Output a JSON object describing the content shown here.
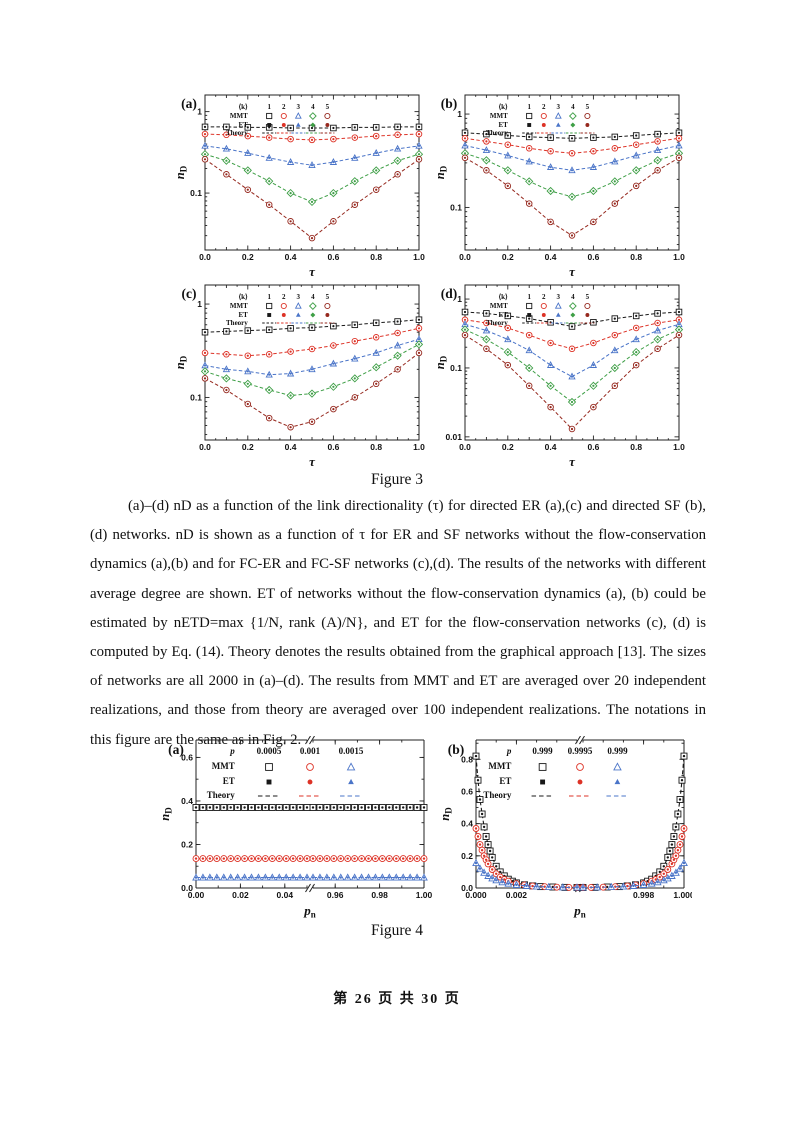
{
  "document": {
    "figure3_caption": "Figure 3",
    "figure4_caption": "Figure 4",
    "body_text": "(a)–(d) nD as a function of the link directionality (τ) for directed ER (a),(c) and directed SF (b),(d) networks. nD is shown as a function of τ for ER and SF networks without the flow-conservation dynamics (a),(b) and for FC-ER and FC-SF networks (c),(d). The results of the networks with different average degree are shown. ET of networks without the flow-conservation dynamics (a), (b) could be estimated by nETD=max {1/N, rank (A)/N}, and ET for the flow-conservation networks (c), (d) is computed by Eq. (14). Theory denotes the results obtained from the graphical approach [13]. The sizes of networks are all 2000 in (a)–(d). The results from MMT and ET are averaged over 20 independent realizations, and those from theory are averaged over 100 independent realizations. The notations in this figure are the same as in Fig. 2.",
    "footer": "第 26 页  共 30 页"
  },
  "colors": {
    "k1": "#181818",
    "k2": "#dd3327",
    "k3": "#4a74c8",
    "k4": "#3f9f47",
    "k5": "#96291f"
  },
  "chart_data": [
    {
      "id": "3a",
      "type": "line",
      "panel_label": "(a)",
      "xlabel": "τ",
      "ylabel": "nD",
      "yscale": "log",
      "x": [
        0,
        0.1,
        0.2,
        0.3,
        0.4,
        0.5,
        0.6,
        0.7,
        0.8,
        0.9,
        1.0
      ],
      "xticks": [
        0,
        0.2,
        0.4,
        0.6,
        0.8,
        1.0
      ],
      "ylim": [
        0.02,
        1.6
      ],
      "yticks": [
        1,
        0.1
      ],
      "legend": {
        "header": "⟨k⟩",
        "cols": [
          "1",
          "2",
          "3",
          "4",
          "5"
        ],
        "rows": [
          "MMT",
          "ET",
          "Theory"
        ]
      },
      "series": [
        {
          "name": "k=1",
          "color_key": "k1",
          "marker": "square",
          "values": [
            0.65,
            0.65,
            0.64,
            0.64,
            0.63,
            0.63,
            0.63,
            0.64,
            0.64,
            0.65,
            0.65
          ]
        },
        {
          "name": "k=2",
          "color_key": "k2",
          "marker": "circle",
          "values": [
            0.53,
            0.52,
            0.5,
            0.48,
            0.46,
            0.45,
            0.46,
            0.48,
            0.5,
            0.52,
            0.53
          ]
        },
        {
          "name": "k=3",
          "color_key": "k3",
          "marker": "triangle",
          "values": [
            0.38,
            0.35,
            0.31,
            0.27,
            0.24,
            0.22,
            0.24,
            0.27,
            0.31,
            0.35,
            0.38
          ]
        },
        {
          "name": "k=4",
          "color_key": "k4",
          "marker": "diamond",
          "values": [
            0.3,
            0.25,
            0.19,
            0.14,
            0.1,
            0.078,
            0.1,
            0.14,
            0.19,
            0.25,
            0.3
          ]
        },
        {
          "name": "k=5",
          "color_key": "k5",
          "marker": "circle",
          "values": [
            0.26,
            0.17,
            0.11,
            0.072,
            0.045,
            0.028,
            0.045,
            0.072,
            0.11,
            0.17,
            0.26
          ]
        }
      ]
    },
    {
      "id": "3b",
      "type": "line",
      "panel_label": "(b)",
      "xlabel": "τ",
      "ylabel": "nD",
      "yscale": "log",
      "x": [
        0,
        0.1,
        0.2,
        0.3,
        0.4,
        0.5,
        0.6,
        0.7,
        0.8,
        0.9,
        1.0
      ],
      "xticks": [
        0,
        0.2,
        0.4,
        0.6,
        0.8,
        1.0
      ],
      "ylim": [
        0.035,
        1.6
      ],
      "yticks": [
        1,
        0.1
      ],
      "legend": {
        "header": "⟨k⟩",
        "cols": [
          "1",
          "2",
          "3",
          "4",
          "5"
        ],
        "rows": [
          "MMT",
          "ET",
          "Theory"
        ]
      },
      "series": [
        {
          "name": "k=1",
          "color_key": "k1",
          "marker": "square",
          "values": [
            0.63,
            0.61,
            0.59,
            0.57,
            0.56,
            0.55,
            0.56,
            0.57,
            0.59,
            0.61,
            0.63
          ]
        },
        {
          "name": "k=2",
          "color_key": "k2",
          "marker": "circle",
          "values": [
            0.55,
            0.51,
            0.47,
            0.43,
            0.4,
            0.38,
            0.4,
            0.43,
            0.47,
            0.51,
            0.55
          ]
        },
        {
          "name": "k=3",
          "color_key": "k3",
          "marker": "triangle",
          "values": [
            0.46,
            0.41,
            0.36,
            0.31,
            0.27,
            0.25,
            0.27,
            0.31,
            0.36,
            0.41,
            0.46
          ]
        },
        {
          "name": "k=4",
          "color_key": "k4",
          "marker": "diamond",
          "values": [
            0.38,
            0.32,
            0.25,
            0.19,
            0.15,
            0.13,
            0.15,
            0.19,
            0.25,
            0.32,
            0.38
          ]
        },
        {
          "name": "k=5",
          "color_key": "k5",
          "marker": "circle",
          "values": [
            0.34,
            0.25,
            0.17,
            0.11,
            0.07,
            0.05,
            0.07,
            0.11,
            0.17,
            0.25,
            0.34
          ]
        }
      ]
    },
    {
      "id": "3c",
      "type": "line",
      "panel_label": "(c)",
      "xlabel": "τ",
      "ylabel": "nD",
      "yscale": "log",
      "x": [
        0,
        0.1,
        0.2,
        0.3,
        0.4,
        0.5,
        0.6,
        0.7,
        0.8,
        0.9,
        1.0
      ],
      "xticks": [
        0,
        0.2,
        0.4,
        0.6,
        0.8,
        1.0
      ],
      "ylim": [
        0.035,
        1.6
      ],
      "yticks": [
        1,
        0.1
      ],
      "legend": {
        "header": "⟨k⟩",
        "cols": [
          "1",
          "2",
          "3",
          "4",
          "5"
        ],
        "rows": [
          "MMT",
          "ET",
          "Theory"
        ]
      },
      "series": [
        {
          "name": "k=1",
          "color_key": "k1",
          "marker": "square",
          "values": [
            0.5,
            0.51,
            0.52,
            0.53,
            0.55,
            0.56,
            0.58,
            0.6,
            0.63,
            0.65,
            0.68
          ]
        },
        {
          "name": "k=2",
          "color_key": "k2",
          "marker": "circle",
          "values": [
            0.3,
            0.29,
            0.28,
            0.29,
            0.31,
            0.33,
            0.36,
            0.4,
            0.44,
            0.49,
            0.55
          ]
        },
        {
          "name": "k=3",
          "color_key": "k3",
          "marker": "triangle",
          "values": [
            0.22,
            0.2,
            0.19,
            0.175,
            0.18,
            0.2,
            0.23,
            0.26,
            0.3,
            0.36,
            0.42
          ]
        },
        {
          "name": "k=4",
          "color_key": "k4",
          "marker": "diamond",
          "values": [
            0.19,
            0.16,
            0.14,
            0.12,
            0.105,
            0.11,
            0.13,
            0.16,
            0.21,
            0.28,
            0.37
          ]
        },
        {
          "name": "k=5",
          "color_key": "k5",
          "marker": "circle",
          "values": [
            0.16,
            0.12,
            0.085,
            0.06,
            0.048,
            0.055,
            0.075,
            0.1,
            0.14,
            0.2,
            0.3
          ]
        }
      ]
    },
    {
      "id": "3d",
      "type": "line",
      "panel_label": "(d)",
      "xlabel": "τ",
      "ylabel": "nD",
      "yscale": "log",
      "x": [
        0,
        0.1,
        0.2,
        0.3,
        0.4,
        0.5,
        0.6,
        0.7,
        0.8,
        0.9,
        1.0
      ],
      "xticks": [
        0,
        0.2,
        0.4,
        0.6,
        0.8,
        1.0
      ],
      "ylim": [
        0.009,
        1.6
      ],
      "yticks": [
        1,
        0.1
      ],
      "legend": {
        "header": "⟨k⟩",
        "cols": [
          "1",
          "2",
          "3",
          "4",
          "5"
        ],
        "rows": [
          "MMT",
          "ET",
          "Theory"
        ]
      },
      "series": [
        {
          "name": "k=1",
          "color_key": "k1",
          "marker": "square",
          "values": [
            0.65,
            0.62,
            0.57,
            0.52,
            0.46,
            0.4,
            0.46,
            0.52,
            0.57,
            0.62,
            0.65
          ]
        },
        {
          "name": "k=2",
          "color_key": "k2",
          "marker": "circle",
          "values": [
            0.5,
            0.45,
            0.38,
            0.3,
            0.23,
            0.19,
            0.23,
            0.3,
            0.38,
            0.45,
            0.5
          ]
        },
        {
          "name": "k=3",
          "color_key": "k3",
          "marker": "triangle",
          "values": [
            0.43,
            0.35,
            0.26,
            0.18,
            0.11,
            0.075,
            0.11,
            0.18,
            0.26,
            0.35,
            0.43
          ]
        },
        {
          "name": "k=4",
          "color_key": "k4",
          "marker": "diamond",
          "values": [
            0.36,
            0.26,
            0.17,
            0.1,
            0.055,
            0.032,
            0.055,
            0.1,
            0.17,
            0.26,
            0.36
          ]
        },
        {
          "name": "k=5",
          "color_key": "k5",
          "marker": "circle",
          "values": [
            0.3,
            0.19,
            0.11,
            0.055,
            0.027,
            0.013,
            0.027,
            0.055,
            0.11,
            0.19,
            0.3
          ]
        }
      ]
    },
    {
      "id": "4a",
      "type": "line-broken-x",
      "panel_label": "(a)",
      "xlabel": "pn",
      "ylabel": "nD",
      "ylim": [
        0,
        0.68
      ],
      "yticks": [
        0,
        0.2,
        0.4,
        0.6
      ],
      "y_minor_step": 0.1,
      "x_break": {
        "left_range": [
          0,
          0.05
        ],
        "left_ticks": [
          [
            0,
            "0.00"
          ],
          [
            0.02,
            "0.02"
          ],
          [
            0.04,
            "0.04"
          ]
        ],
        "right_range": [
          0.95,
          1
        ],
        "right_ticks": [
          [
            0.96,
            "0.96"
          ],
          [
            0.98,
            "0.98"
          ],
          [
            1.0,
            "1.00"
          ]
        ],
        "minor_step": 0.01
      },
      "legend": {
        "header": "p",
        "cols": [
          "0.0005",
          "0.001",
          "0.0015"
        ],
        "rows": [
          "MMT",
          "ET",
          "Theory"
        ]
      },
      "series": [
        {
          "name": "p=0.0005",
          "color_key": "k1",
          "marker": "square",
          "constant": 0.37,
          "n_markers": 17
        },
        {
          "name": "p=0.001",
          "color_key": "k2",
          "marker": "circle",
          "constant": 0.135,
          "n_markers": 17
        },
        {
          "name": "p=0.0015",
          "color_key": "k3",
          "marker": "triangle",
          "constant": 0.048,
          "n_markers": 17
        }
      ]
    },
    {
      "id": "4b",
      "type": "line-broken-x",
      "panel_label": "(b)",
      "xlabel": "pn",
      "ylabel": "nD",
      "ylim": [
        0,
        0.92
      ],
      "yticks": [
        0,
        0.2,
        0.4,
        0.6,
        0.8
      ],
      "y_minor_step": 0.1,
      "x_break": {
        "left_range": [
          0,
          0.005
        ],
        "left_ticks": [
          [
            0,
            "0.000"
          ],
          [
            0.002,
            "0.002"
          ]
        ],
        "right_range": [
          0.995,
          1
        ],
        "right_ticks": [
          [
            0.998,
            "0.998"
          ],
          [
            1.0,
            "1.000"
          ]
        ],
        "minor_step": 0.001
      },
      "legend": {
        "header": "p",
        "cols": [
          "0.999",
          "0.9995",
          "0.999"
        ],
        "rows": [
          "MMT",
          "ET",
          "Theory"
        ]
      },
      "series": [
        {
          "name": "p=0.999",
          "color_key": "k1",
          "marker": "square",
          "mirror": true,
          "points": [
            [
              0,
              0.82
            ],
            [
              0.0001,
              0.67
            ],
            [
              0.0002,
              0.55
            ],
            [
              0.0003,
              0.46
            ],
            [
              0.0004,
              0.38
            ],
            [
              0.0005,
              0.32
            ],
            [
              0.0006,
              0.27
            ],
            [
              0.0007,
              0.23
            ],
            [
              0.0008,
              0.19
            ],
            [
              0.001,
              0.135
            ],
            [
              0.0012,
              0.1
            ],
            [
              0.0014,
              0.075
            ],
            [
              0.0016,
              0.055
            ],
            [
              0.0018,
              0.042
            ],
            [
              0.002,
              0.032
            ],
            [
              0.0024,
              0.02
            ],
            [
              0.0028,
              0.013
            ],
            [
              0.0032,
              0.009
            ],
            [
              0.0038,
              0.006
            ],
            [
              0.0044,
              0.004
            ],
            [
              0.005,
              0.003
            ]
          ]
        },
        {
          "name": "p=0.9995",
          "color_key": "k2",
          "marker": "circle",
          "mirror": true,
          "points": [
            [
              0,
              0.37
            ],
            [
              0.0001,
              0.32
            ],
            [
              0.0002,
              0.27
            ],
            [
              0.0003,
              0.235
            ],
            [
              0.0004,
              0.2
            ],
            [
              0.0005,
              0.175
            ],
            [
              0.0006,
              0.15
            ],
            [
              0.0008,
              0.115
            ],
            [
              0.001,
              0.088
            ],
            [
              0.0012,
              0.068
            ],
            [
              0.0014,
              0.053
            ],
            [
              0.0016,
              0.042
            ],
            [
              0.002,
              0.027
            ],
            [
              0.0024,
              0.018
            ],
            [
              0.0028,
              0.012
            ],
            [
              0.0034,
              0.008
            ],
            [
              0.004,
              0.005
            ],
            [
              0.0046,
              0.004
            ],
            [
              0.005,
              0.003
            ]
          ]
        },
        {
          "name": "p=0.999",
          "color_key": "k3",
          "marker": "triangle",
          "mirror": true,
          "points": [
            [
              0,
              0.155
            ],
            [
              0.0002,
              0.12
            ],
            [
              0.0004,
              0.095
            ],
            [
              0.0006,
              0.075
            ],
            [
              0.0008,
              0.06
            ],
            [
              0.001,
              0.048
            ],
            [
              0.0013,
              0.036
            ],
            [
              0.0016,
              0.027
            ],
            [
              0.002,
              0.019
            ],
            [
              0.0025,
              0.013
            ],
            [
              0.003,
              0.009
            ],
            [
              0.0036,
              0.006
            ],
            [
              0.0043,
              0.004
            ],
            [
              0.005,
              0.003
            ]
          ]
        }
      ]
    }
  ]
}
